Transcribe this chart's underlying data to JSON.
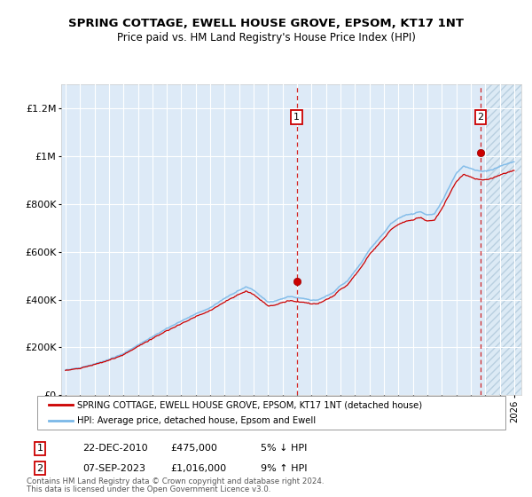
{
  "title": "SPRING COTTAGE, EWELL HOUSE GROVE, EPSOM, KT17 1NT",
  "subtitle": "Price paid vs. HM Land Registry's House Price Index (HPI)",
  "ylim": [
    0,
    1300000
  ],
  "yticks": [
    0,
    200000,
    400000,
    600000,
    800000,
    1000000,
    1200000
  ],
  "ytick_labels": [
    "£0",
    "£200K",
    "£400K",
    "£600K",
    "£800K",
    "£1M",
    "£1.2M"
  ],
  "bg_color": "#ddeaf7",
  "future_bg": "#d0e2f0",
  "grid_color": "#ffffff",
  "line_color_hpi": "#7ab8e8",
  "line_color_price": "#cc0000",
  "marker_color": "#cc0000",
  "sale1_year": 2010.97,
  "sale1_price": 475000,
  "sale2_year": 2023.68,
  "sale2_price": 1016000,
  "future_start": 2024.0,
  "xmin": 1994.7,
  "xmax": 2026.5,
  "legend_line1": "SPRING COTTAGE, EWELL HOUSE GROVE, EPSOM, KT17 1NT (detached house)",
  "legend_line2": "HPI: Average price, detached house, Epsom and Ewell",
  "footer1": "Contains HM Land Registry data © Crown copyright and database right 2024.",
  "footer2": "This data is licensed under the Open Government Licence v3.0.",
  "ann1_date": "22-DEC-2010",
  "ann1_price": "£475,000",
  "ann1_pct": "5% ↓ HPI",
  "ann2_date": "07-SEP-2023",
  "ann2_price": "£1,016,000",
  "ann2_pct": "9% ↑ HPI",
  "hpi_knots_x": [
    1995,
    1996,
    1997,
    1998,
    1999,
    2000,
    2001,
    2002,
    2003,
    2004,
    2005,
    2006,
    2007,
    2007.5,
    2008,
    2008.5,
    2009,
    2009.5,
    2010,
    2010.5,
    2011,
    2011.5,
    2012,
    2012.5,
    2013,
    2013.5,
    2014,
    2014.5,
    2015,
    2015.5,
    2016,
    2016.5,
    2017,
    2017.5,
    2018,
    2018.5,
    2019,
    2019.5,
    2020,
    2020.5,
    2021,
    2021.5,
    2022,
    2022.5,
    2023,
    2023.5,
    2024,
    2024.5,
    2025,
    2025.5,
    2026
  ],
  "hpi_knots_y": [
    105000,
    115000,
    130000,
    150000,
    175000,
    210000,
    245000,
    280000,
    310000,
    340000,
    365000,
    405000,
    440000,
    455000,
    440000,
    415000,
    390000,
    395000,
    405000,
    415000,
    408000,
    405000,
    398000,
    400000,
    415000,
    430000,
    460000,
    480000,
    520000,
    560000,
    610000,
    645000,
    680000,
    720000,
    740000,
    755000,
    760000,
    770000,
    755000,
    760000,
    810000,
    870000,
    930000,
    960000,
    950000,
    940000,
    940000,
    945000,
    960000,
    970000,
    980000
  ]
}
